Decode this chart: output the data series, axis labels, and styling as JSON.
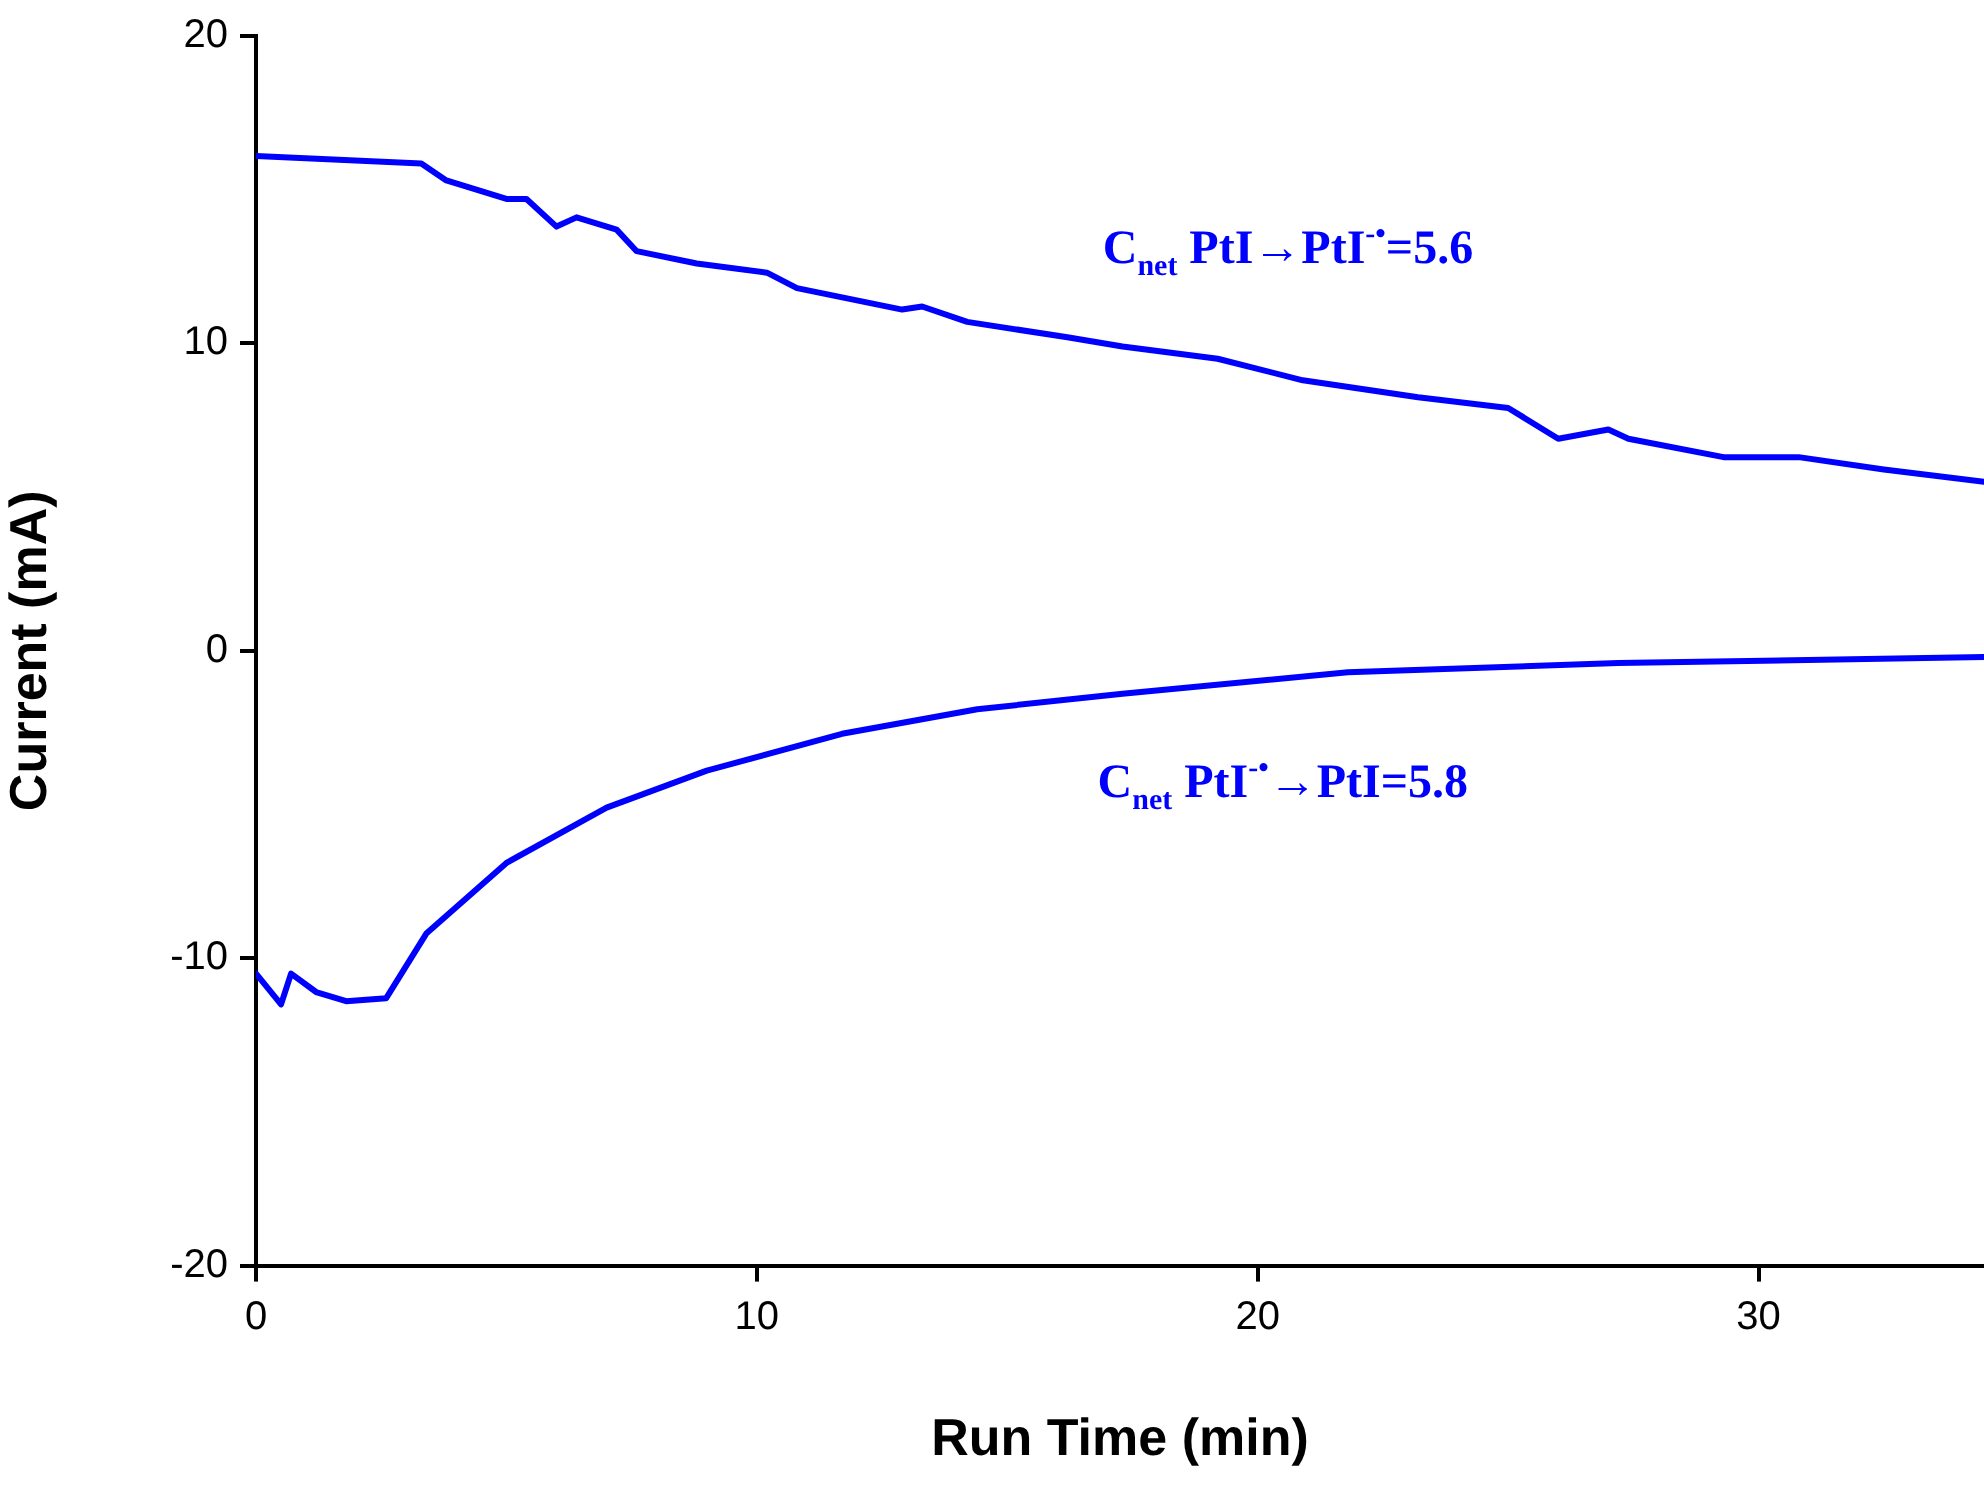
{
  "chart_data": {
    "type": "line",
    "xlabel": "Run Time (min)",
    "ylabel": "Current (mA)",
    "xlim": [
      0,
      34.5
    ],
    "xticks": [
      0,
      10,
      20,
      30
    ],
    "ylim": [
      -20,
      20
    ],
    "yticks": [
      -20,
      -10,
      0,
      10,
      20
    ],
    "grid": false,
    "legend": false,
    "marker": "none",
    "line_style": "solid",
    "series": [
      {
        "color": "#0000ff",
        "x": [
          0,
          3.3,
          3.8,
          5.0,
          5.4,
          6.0,
          6.4,
          7.2,
          7.6,
          8.8,
          10.2,
          10.8,
          12.9,
          13.3,
          14.2,
          16.2,
          17.3,
          19.2,
          20.9,
          23.2,
          25,
          26,
          27,
          27.4,
          29.3,
          30.8,
          32.5,
          34.5
        ],
        "values": [
          16.1,
          15.85,
          15.3,
          14.7,
          14.7,
          13.8,
          14.1,
          13.7,
          13.0,
          12.6,
          12.3,
          11.8,
          11.1,
          11.2,
          10.7,
          10.2,
          9.9,
          9.5,
          8.8,
          8.25,
          7.9,
          6.9,
          7.2,
          6.9,
          6.3,
          6.3,
          5.9,
          5.5
        ]
      },
      {
        "color": "#0000ff",
        "x": [
          0,
          0.5,
          0.7,
          1.2,
          1.8,
          2.6,
          3.4,
          5.0,
          7.0,
          9.0,
          11.7,
          14.4,
          17.3,
          21.8,
          27.2,
          34.5
        ],
        "values": [
          -10.5,
          -11.5,
          -10.5,
          -11.1,
          -11.4,
          -11.3,
          -9.2,
          -6.9,
          -5.1,
          -3.9,
          -2.7,
          -1.9,
          -1.4,
          -0.7,
          -0.4,
          -0.2
        ]
      }
    ],
    "annotations": [
      "C$_{net}$ PtI→PtI$^{-•}$=5.6",
      "C$_{net}$ PtI$^{-•}$→PtI=5.8"
    ]
  }
}
